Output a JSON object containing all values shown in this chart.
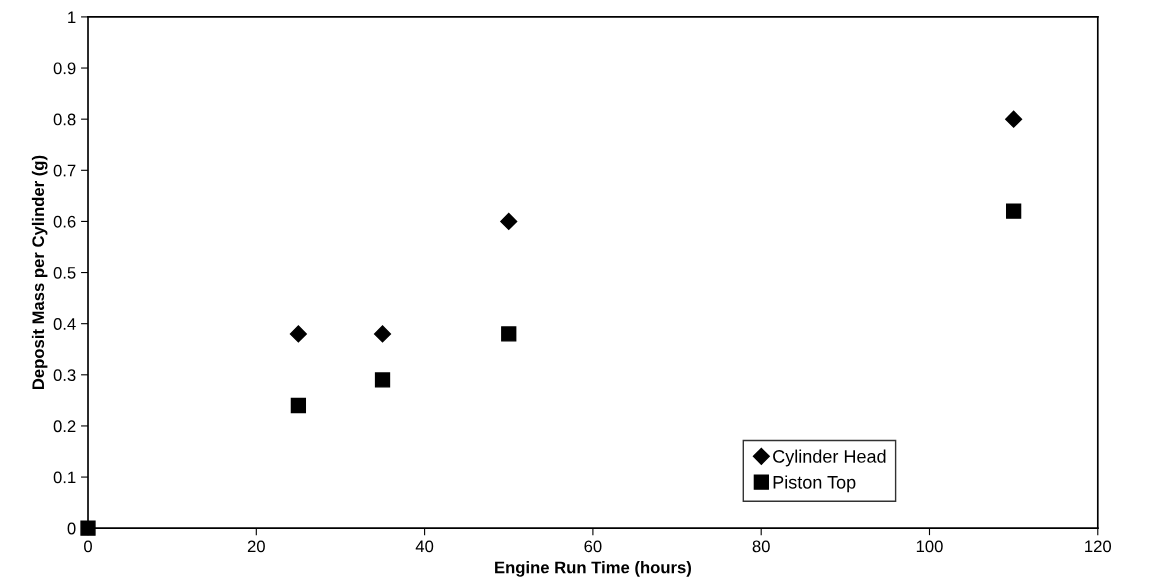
{
  "chart_data": {
    "type": "scatter",
    "xlabel": "Engine Run Time (hours)",
    "ylabel": "Deposit Mass per Cylinder (g)",
    "x": [
      0,
      25,
      35,
      50,
      110
    ],
    "series": [
      {
        "name": "Cylinder Head",
        "color": "#000000",
        "marker": "diamond",
        "values": [
          null,
          0.38,
          0.38,
          0.6,
          0.8
        ]
      },
      {
        "name": "Piston Top",
        "color": "#000000",
        "marker": "square",
        "values": [
          0,
          0.24,
          0.29,
          0.38,
          0.62
        ]
      }
    ],
    "xlim": [
      0,
      120
    ],
    "xticks": [
      0,
      20,
      40,
      60,
      80,
      100,
      120
    ],
    "ylim": [
      0,
      1
    ],
    "yticks": [
      0,
      0.1,
      0.2,
      0.3,
      0.4,
      0.5,
      0.6,
      0.7,
      0.8,
      0.9,
      1
    ],
    "grid": false,
    "legend": "bottom right"
  }
}
